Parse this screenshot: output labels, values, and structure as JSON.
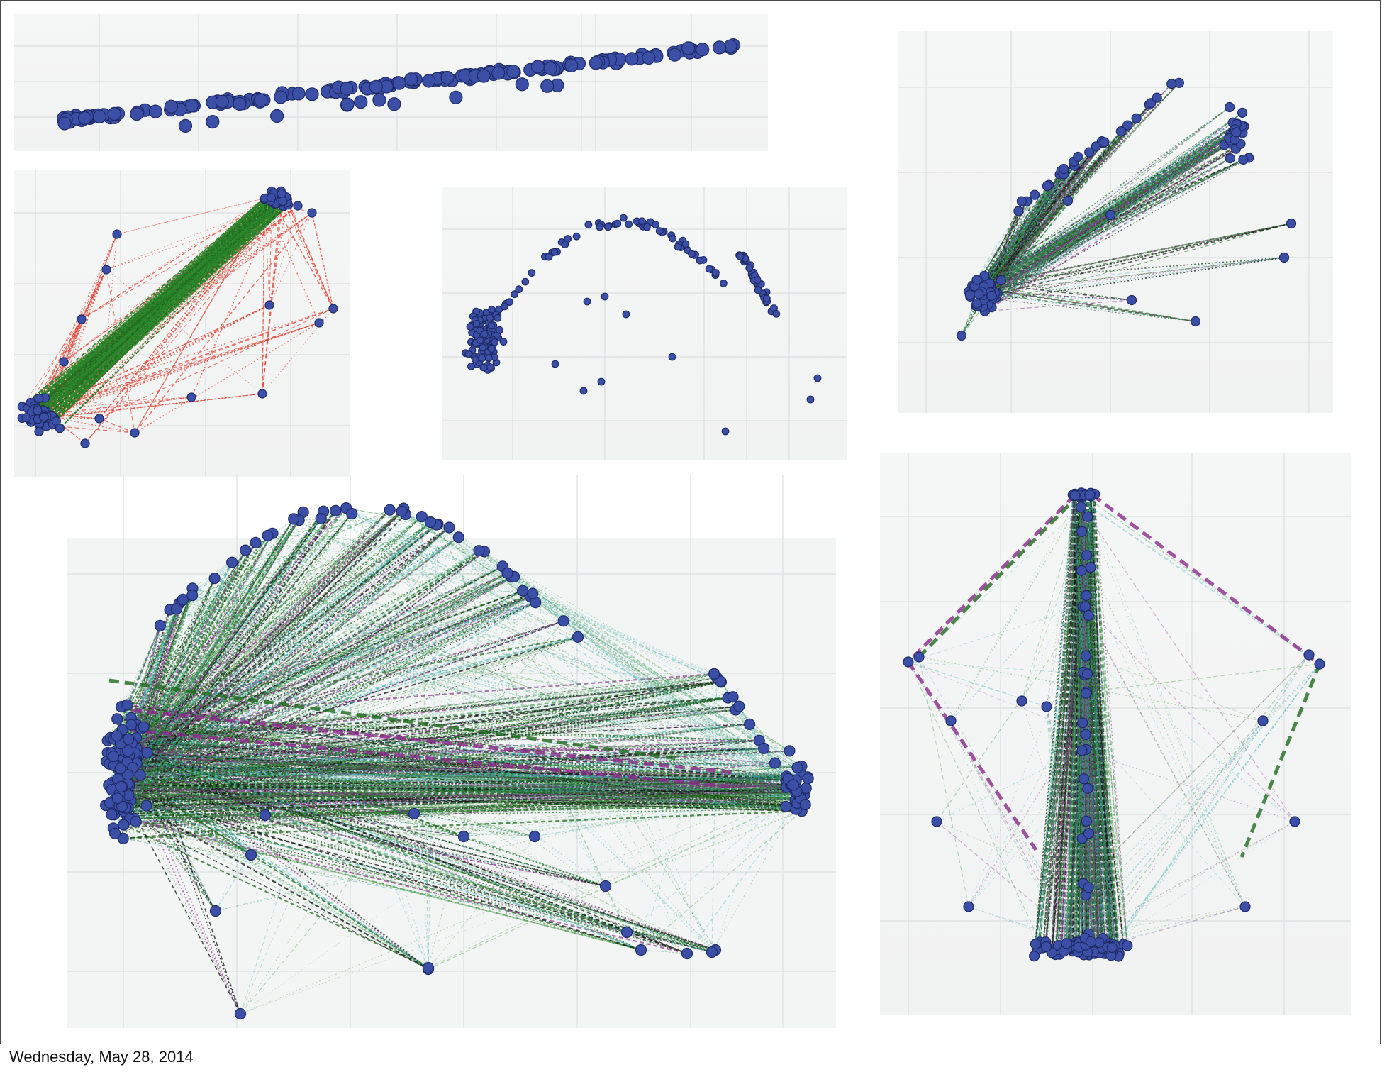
{
  "footer": {
    "date_text": "Wednesday, May 28, 2014"
  },
  "colors": {
    "node_fill": "#3b4fa6",
    "node_stroke": "#1e2a66",
    "edge_green": "#2e8b2e",
    "edge_dark_green": "#1f6b1f",
    "edge_red": "#e03a2a",
    "edge_purple": "#8a2a8a",
    "edge_teal": "#3fb0b8",
    "edge_black": "#111111",
    "grid": "#dcdfe0",
    "panel_bg": "#f3f4f4"
  },
  "panels": [
    {
      "id": "strip-scatter",
      "kind": "3d-scatter",
      "edges": "none"
    },
    {
      "id": "red-green-graph",
      "kind": "3d-network",
      "edges": "red-green dotted"
    },
    {
      "id": "arch-scatter",
      "kind": "3d-scatter",
      "edges": "none"
    },
    {
      "id": "fan-graph-small",
      "kind": "3d-network",
      "edges": "multicolor dashed"
    },
    {
      "id": "fan-graph-large",
      "kind": "3d-network",
      "edges": "multicolor dashed"
    },
    {
      "id": "cone-graph",
      "kind": "3d-network",
      "edges": "multicolor dashed"
    }
  ]
}
